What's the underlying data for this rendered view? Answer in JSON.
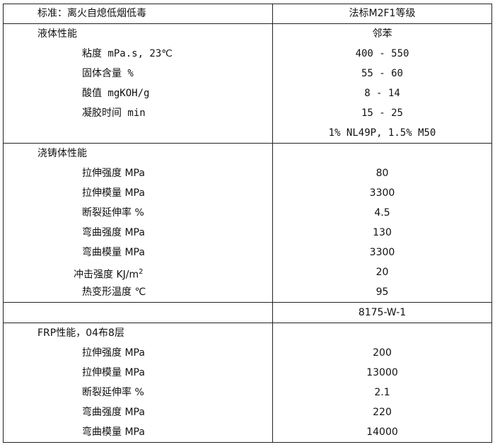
{
  "header": {
    "left": "标准：离火自熄低烟低毒",
    "right": "法标M2F1等级"
  },
  "liquid": {
    "title": "液体性能",
    "title_value": "邻苯",
    "rows": [
      {
        "label": "粘度  mPa.s, 23℃",
        "value": "400 - 550"
      },
      {
        "label": "固体含量  %",
        "value": "55 - 60"
      },
      {
        "label": "酸值  mgKOH/g",
        "value": "8 - 14"
      },
      {
        "label": "凝胶时间  min",
        "value": "15 - 25"
      }
    ],
    "note": "1% NL49P, 1.5% M50"
  },
  "cast": {
    "title": "浇铸体性能",
    "rows": [
      {
        "label": "拉伸强度  MPa",
        "value": "80"
      },
      {
        "label": "拉伸模量  MPa",
        "value": "3300"
      },
      {
        "label": "断裂延伸率  %",
        "value": "4.5"
      },
      {
        "label": "弯曲强度  MPa",
        "value": "130"
      },
      {
        "label": "弯曲模量  MPa",
        "value": "3300"
      },
      {
        "label": "冲击强度  KJ/m",
        "sup": "2",
        "value": "20"
      },
      {
        "label": "热变形温度 ℃",
        "value": "95"
      }
    ]
  },
  "product_code": "8175-W-1",
  "frp": {
    "title": "FRP性能，04布8层",
    "rows": [
      {
        "label": "拉伸强度 MPa",
        "value": "200"
      },
      {
        "label": "拉伸模量 MPa",
        "value": "13000"
      },
      {
        "label": "断裂延伸率 %",
        "value": "2.1"
      },
      {
        "label": "弯曲强度 MPa",
        "value": "220"
      },
      {
        "label": "弯曲模量 MPa",
        "value": "14000"
      }
    ]
  }
}
